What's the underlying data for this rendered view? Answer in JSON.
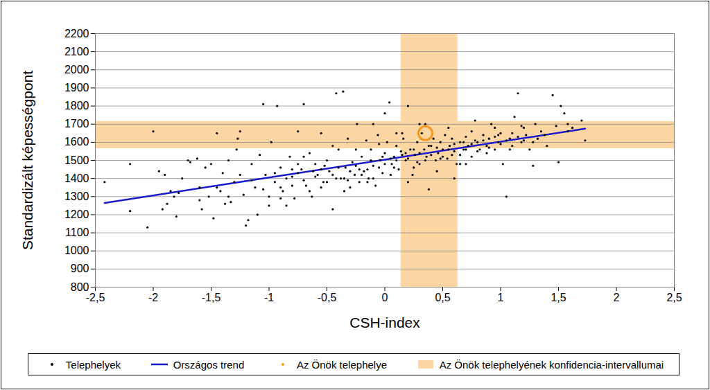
{
  "chart_data": {
    "type": "scatter",
    "xlabel": "CSH-index",
    "ylabel": "Standardizált képességpont",
    "xlim": [
      -2.5,
      2.5
    ],
    "ylim": [
      800,
      2200
    ],
    "xticks": [
      {
        "value": -2.5,
        "label": "-2,5"
      },
      -2,
      {
        "value": -1.5,
        "label": "-1,5"
      },
      -1,
      {
        "value": -0.5,
        "label": "-0,5"
      },
      0,
      {
        "value": 0.5,
        "label": "0,5"
      },
      1,
      {
        "value": 1.5,
        "label": "1,5"
      },
      2,
      {
        "value": 2.5,
        "label": "2,5"
      }
    ],
    "yticks": [
      800,
      900,
      1000,
      1100,
      1200,
      1300,
      1400,
      1500,
      1600,
      1700,
      1800,
      1900,
      2000,
      2100,
      2200
    ],
    "grid": true,
    "legend": "bottom",
    "series": [
      {
        "name": "Telephelyek",
        "type": "scatter",
        "marker": "dot",
        "color": "#000000",
        "x": [
          -2.42,
          -2.2,
          -2.2,
          -2.05,
          -2.0,
          -1.95,
          -1.9,
          -1.92,
          -1.88,
          -1.85,
          -1.82,
          -1.8,
          -1.78,
          -1.75,
          -1.7,
          -1.68,
          -1.62,
          -1.6,
          -1.58,
          -1.55,
          -1.52,
          -1.5,
          -1.48,
          -1.45,
          -1.42,
          -1.4,
          -1.38,
          -1.35,
          -1.33,
          -1.3,
          -1.28,
          -1.27,
          -1.25,
          -1.22,
          -1.2,
          -1.18,
          -1.15,
          -1.12,
          -1.1,
          -1.08,
          -1.05,
          -1.03,
          -1.0,
          -0.98,
          -0.95,
          -0.93,
          -0.9,
          -0.88,
          -0.85,
          -0.82,
          -0.8,
          -0.78,
          -0.75,
          -0.72,
          -0.7,
          -0.68,
          -0.65,
          -0.63,
          -0.6,
          -0.58,
          -0.55,
          -0.53,
          -0.5,
          -0.48,
          -0.45,
          -0.42,
          -0.4,
          -0.38,
          -0.36,
          -0.34,
          -0.32,
          -0.3,
          -0.28,
          -0.26,
          -0.24,
          -0.22,
          -0.2,
          -0.18,
          -0.16,
          -0.14,
          -0.12,
          -0.1,
          -0.08,
          -0.06,
          -0.04,
          -0.02,
          0.0,
          0.02,
          0.04,
          0.06,
          0.08,
          0.1,
          0.12,
          0.14,
          0.16,
          0.18,
          0.2,
          0.22,
          0.24,
          0.26,
          0.28,
          0.3,
          0.32,
          0.34,
          0.36,
          0.38,
          0.4,
          0.42,
          0.44,
          0.46,
          0.48,
          0.5,
          0.52,
          0.54,
          0.56,
          0.58,
          0.6,
          0.62,
          0.65,
          0.68,
          0.7,
          0.72,
          0.75,
          0.78,
          0.8,
          0.82,
          0.85,
          0.88,
          0.9,
          0.92,
          0.95,
          0.98,
          1.0,
          1.02,
          1.05,
          1.08,
          1.1,
          1.12,
          1.15,
          1.18,
          1.2,
          1.22,
          1.25,
          1.28,
          1.3,
          1.32,
          1.35,
          1.4,
          1.45,
          1.48,
          1.5,
          1.52,
          1.55,
          1.58,
          1.62,
          1.7,
          1.73,
          -0.9,
          -0.85,
          -0.8,
          -0.75,
          -0.7,
          -0.65,
          -0.6,
          -0.55,
          -0.5,
          -0.45,
          -0.4,
          -0.35,
          -0.3,
          -0.25,
          -0.2,
          -0.15,
          -0.1,
          -0.05,
          0.0,
          0.05,
          0.1,
          0.15,
          0.2,
          0.25,
          0.3,
          0.35,
          0.4,
          0.45,
          0.5,
          0.55,
          0.6,
          0.65,
          0.7,
          0.75,
          0.8,
          0.85,
          0.9,
          0.95,
          1.0,
          1.05,
          1.1,
          1.15,
          1.2,
          -0.95,
          -0.75,
          -0.55,
          -0.35,
          -0.15,
          0.05,
          0.25,
          0.45,
          0.65,
          -1.15,
          -1.05,
          -0.9,
          -0.7,
          -0.45,
          -0.25,
          -0.05,
          0.15,
          0.35,
          0.55,
          0.75,
          0.95,
          -0.62,
          -0.42,
          -0.22,
          -0.02,
          0.18,
          0.38,
          0.58,
          0.78,
          0.98,
          1.18,
          1.38,
          1.58,
          -0.52,
          -0.32,
          -0.12,
          0.08,
          0.28,
          0.48,
          0.68,
          0.88,
          1.08,
          1.28,
          -1.35,
          -1.25,
          -1.45,
          -1.6,
          -1.0,
          -0.8,
          0.1,
          0.3,
          -0.1,
          0.0,
          0.6,
          0.7,
          0.2
        ],
        "values": [
          1380,
          1480,
          1220,
          1130,
          1660,
          1440,
          1420,
          1230,
          1260,
          1330,
          1300,
          1190,
          1320,
          1400,
          1500,
          1490,
          1510,
          1280,
          1230,
          1460,
          1300,
          1480,
          1180,
          1650,
          1330,
          1430,
          1260,
          1500,
          1270,
          1380,
          1560,
          1620,
          1660,
          1310,
          1140,
          1170,
          1480,
          1350,
          1200,
          1530,
          1810,
          1420,
          1300,
          1600,
          1380,
          1800,
          1460,
          1330,
          1250,
          1520,
          1410,
          1290,
          1660,
          1450,
          1810,
          1360,
          1540,
          1300,
          1480,
          1420,
          1650,
          1380,
          1500,
          1440,
          1230,
          1870,
          1560,
          1400,
          1880,
          1460,
          1620,
          1350,
          1490,
          1420,
          1700,
          1380,
          1520,
          1440,
          1610,
          1400,
          1560,
          1470,
          1360,
          1640,
          1500,
          1430,
          1540,
          1600,
          1820,
          1480,
          1520,
          1580,
          1450,
          1550,
          1620,
          1500,
          1800,
          1560,
          1420,
          1530,
          1600,
          1480,
          1650,
          1560,
          1520,
          1340,
          1580,
          1620,
          1500,
          1540,
          1600,
          1560,
          1640,
          1510,
          1580,
          1620,
          1550,
          1480,
          1600,
          1560,
          1630,
          1580,
          1520,
          1720,
          1600,
          1560,
          1640,
          1580,
          1620,
          1700,
          1560,
          1600,
          1650,
          1480,
          1300,
          1620,
          1580,
          1740,
          1870,
          1600,
          1680,
          1640,
          1560,
          1470,
          1700,
          1620,
          1660,
          1580,
          1860,
          1690,
          1490,
          1800,
          1760,
          1700,
          1680,
          1720,
          1610,
          1350,
          1400,
          1360,
          1430,
          1390,
          1330,
          1410,
          1450,
          1380,
          1420,
          1460,
          1400,
          1440,
          1470,
          1420,
          1450,
          1400,
          1460,
          1480,
          1510,
          1500,
          1530,
          1510,
          1560,
          1540,
          1500,
          1530,
          1570,
          1520,
          1560,
          1590,
          1530,
          1560,
          1590,
          1550,
          1610,
          1570,
          1630,
          1590,
          1610,
          1650,
          1630,
          1610,
          1430,
          1480,
          1350,
          1330,
          1380,
          1420,
          1460,
          1440,
          1480,
          1390,
          1340,
          1290,
          1520,
          1580,
          1560,
          1590,
          1650,
          1700,
          1680,
          1660,
          1680,
          1440,
          1400,
          1450,
          1520,
          1540,
          1580,
          1530,
          1610,
          1640,
          1690,
          1640,
          1660,
          1470,
          1390,
          1500,
          1460,
          1490,
          1510,
          1600,
          1540,
          1560,
          1600,
          1300,
          1420,
          1350,
          1350,
          1250,
          1450,
          1650,
          1700,
          1700,
          1760,
          1400,
          1480,
          1380
        ]
      },
      {
        "name": "Országos trend",
        "type": "line",
        "color": "#1a1acc",
        "x": [
          -2.42,
          1.73
        ],
        "values": [
          1265,
          1675
        ]
      },
      {
        "name": "Az Önök telephelye",
        "type": "scatter",
        "marker": "circle",
        "color": "#f39a1e",
        "x": [
          0.35
        ],
        "values": [
          1650
        ]
      },
      {
        "name": "Az Önök telephelyének konfidencia-intervallumai",
        "type": "band",
        "color": "#fcd6a3",
        "x_range": [
          0.14,
          0.63
        ],
        "y_range": [
          1565,
          1715
        ]
      }
    ]
  }
}
